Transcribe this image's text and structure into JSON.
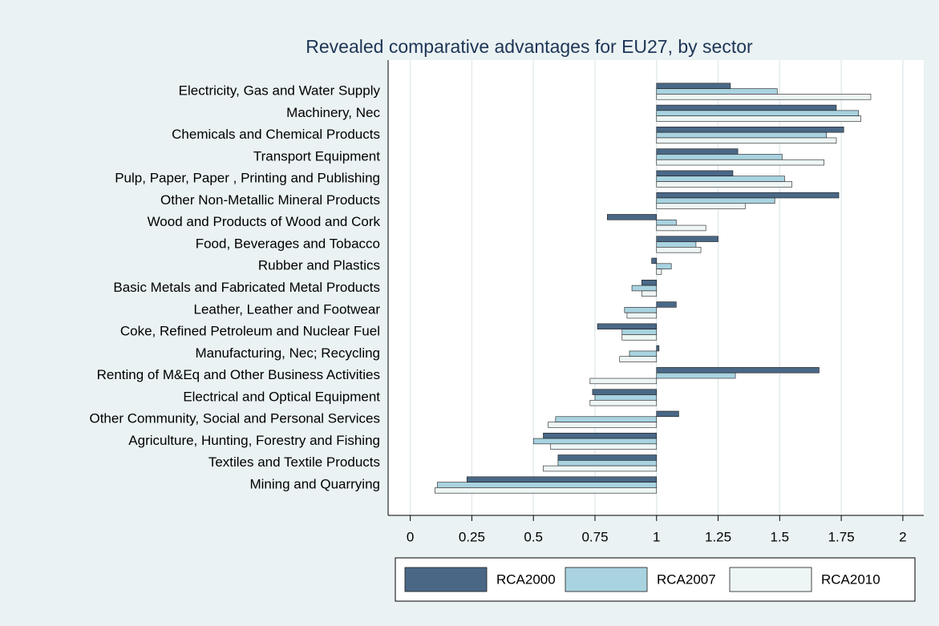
{
  "chart_data": {
    "type": "hbar",
    "title": "Revealed comparative advantages for EU27, by sector",
    "categories": [
      "Electricity, Gas and Water Supply",
      "Machinery, Nec",
      "Chemicals and Chemical Products",
      "Transport Equipment",
      "Pulp, Paper, Paper , Printing and Publishing",
      "Other Non-Metallic Mineral Products",
      "Wood and Products of Wood and Cork",
      "Food, Beverages and Tobacco",
      "Rubber and Plastics",
      "Basic Metals and Fabricated Metal Products",
      "Leather, Leather and Footwear",
      "Coke, Refined Petroleum and Nuclear Fuel",
      "Manufacturing, Nec; Recycling",
      "Renting of M&Eq and Other Business Activities",
      "Electrical and Optical Equipment",
      "Other Community, Social and Personal Services",
      "Agriculture, Hunting, Forestry and Fishing",
      "Textiles and Textile Products",
      "Mining and Quarrying"
    ],
    "series": [
      {
        "name": "RCA2000",
        "color": "#4a6886",
        "values": [
          1.3,
          1.73,
          1.76,
          1.33,
          1.31,
          1.74,
          0.8,
          1.25,
          0.98,
          0.94,
          1.08,
          0.76,
          1.01,
          1.66,
          0.74,
          1.09,
          0.54,
          0.6,
          0.23
        ]
      },
      {
        "name": "RCA2007",
        "color": "#a9d3e0",
        "values": [
          1.49,
          1.82,
          1.69,
          1.51,
          1.52,
          1.48,
          1.08,
          1.16,
          1.06,
          0.9,
          0.87,
          0.86,
          0.89,
          1.32,
          0.75,
          0.59,
          0.5,
          0.6,
          0.11
        ]
      },
      {
        "name": "RCA2010",
        "color": "#eef5f5",
        "values": [
          1.87,
          1.83,
          1.73,
          1.68,
          1.55,
          1.36,
          1.2,
          1.18,
          1.02,
          0.94,
          0.88,
          0.86,
          0.85,
          0.73,
          0.73,
          0.56,
          0.57,
          0.54,
          0.1
        ]
      }
    ],
    "base": 1,
    "xlim": [
      -0.09,
      2.085
    ],
    "xticks": [
      0,
      0.25,
      0.5,
      0.75,
      1,
      1.25,
      1.5,
      1.75,
      2
    ],
    "grid": true,
    "legend": "bottom"
  }
}
